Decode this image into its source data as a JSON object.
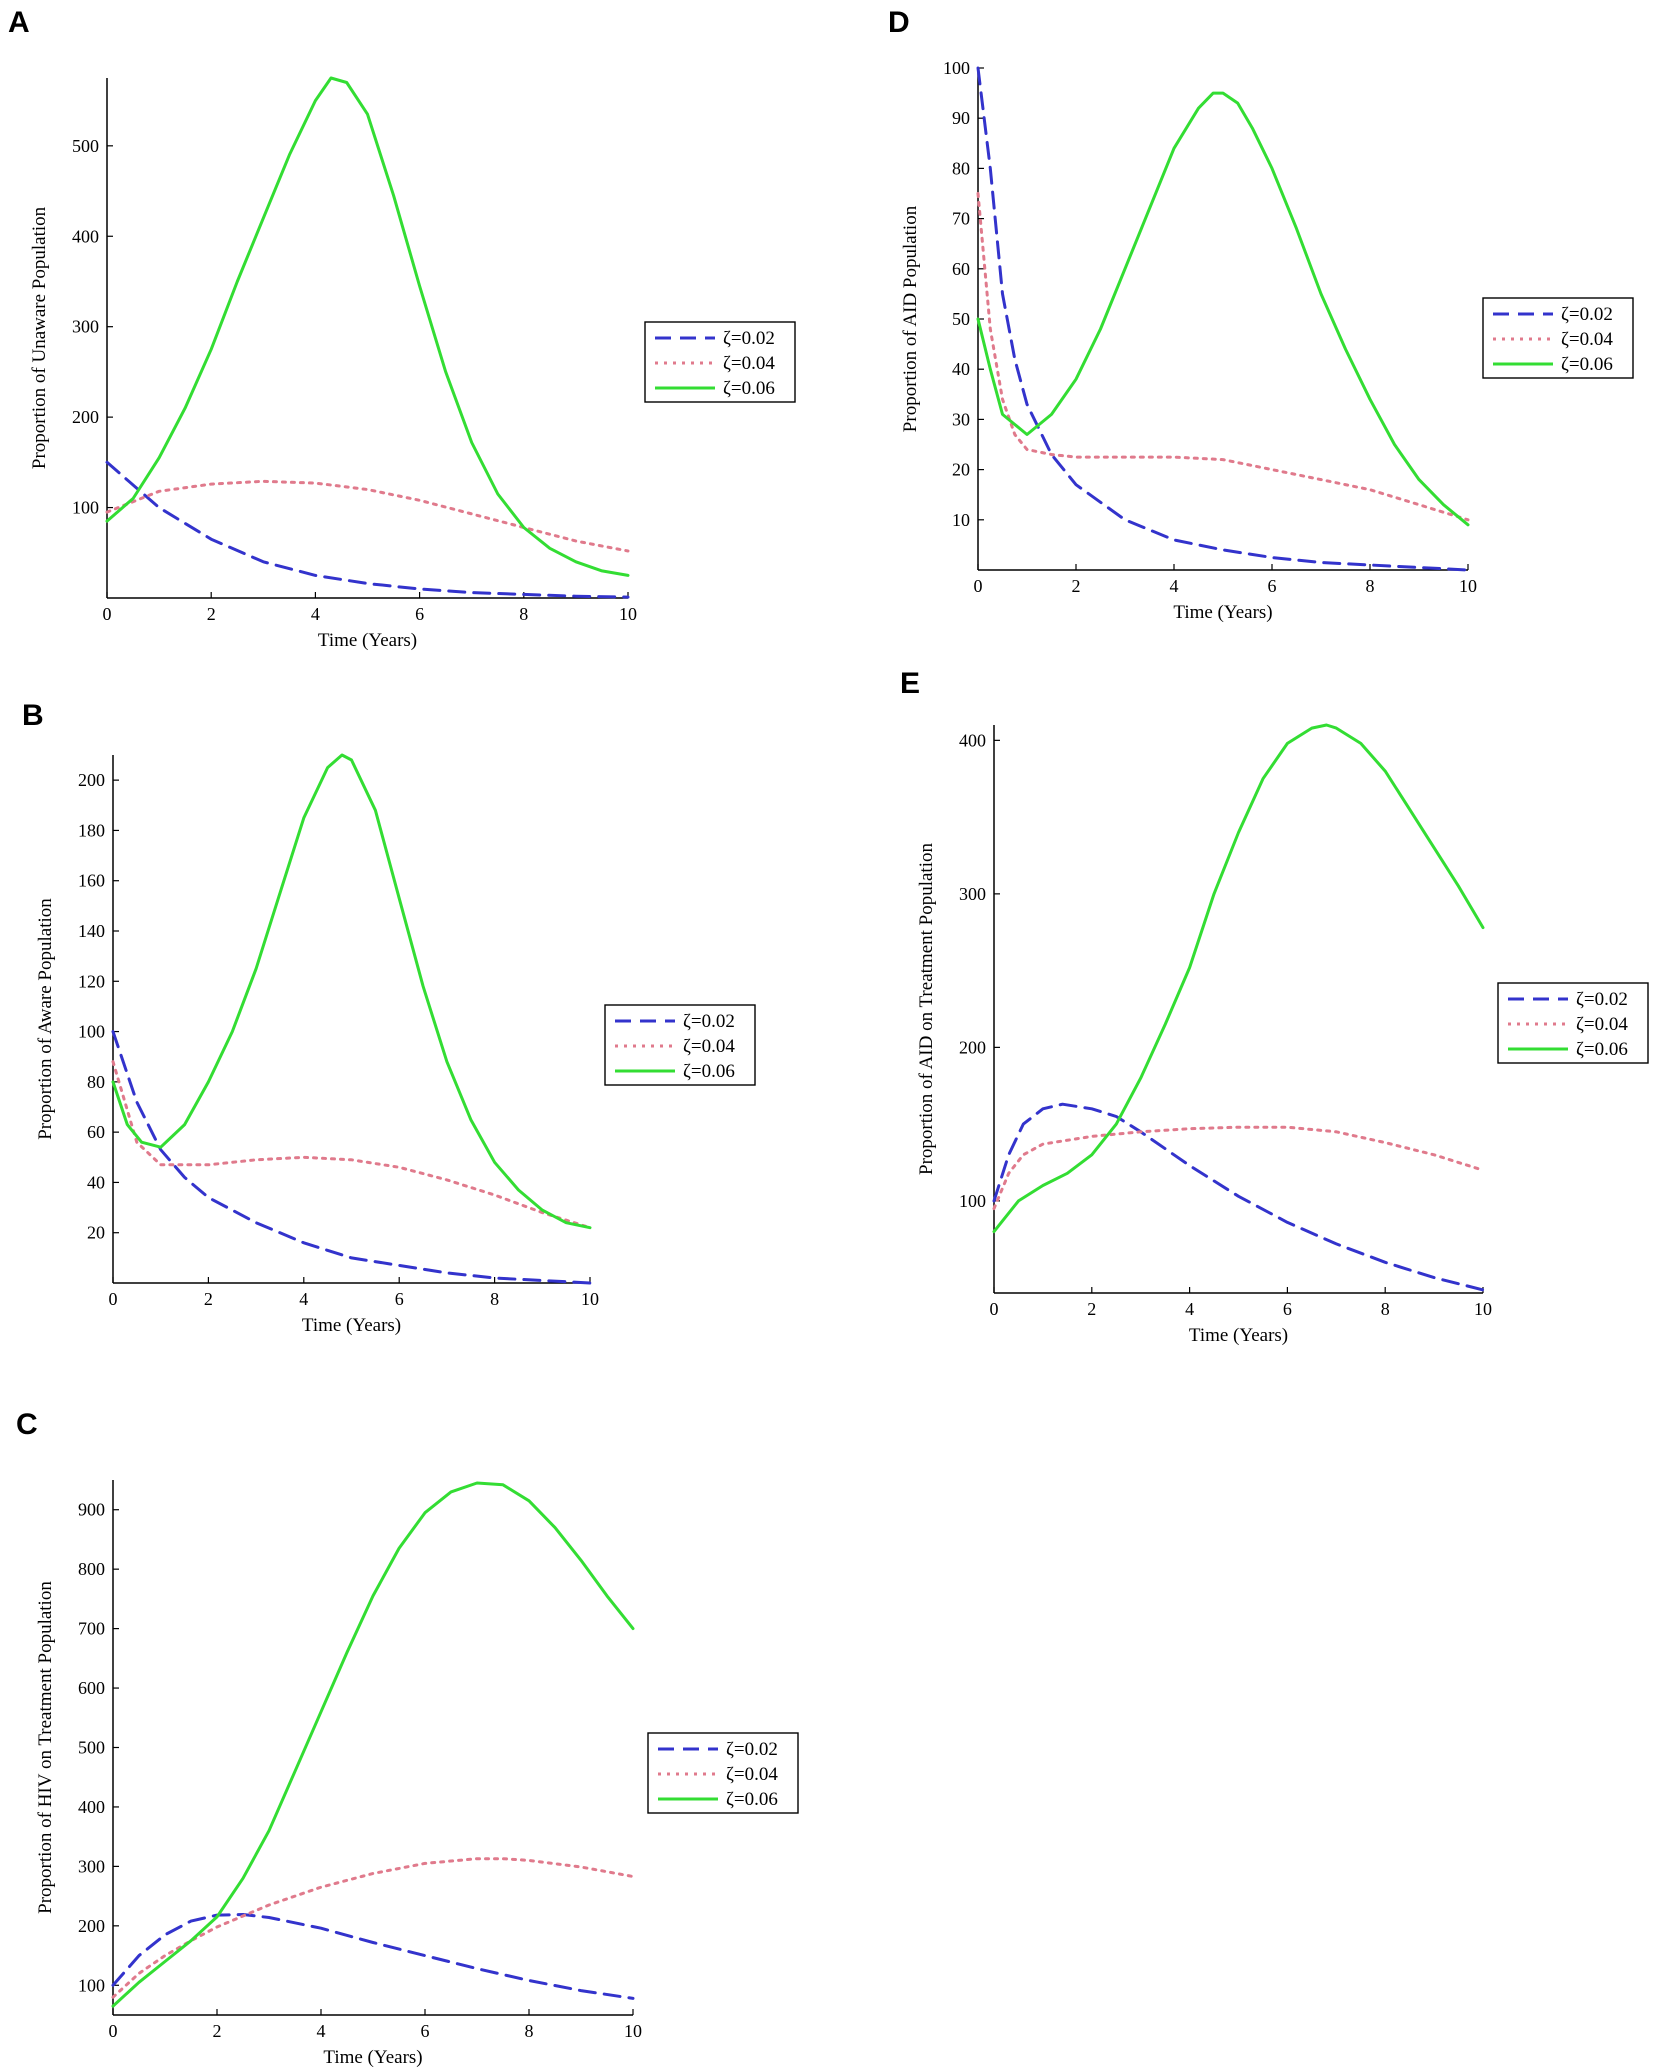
{
  "colors": {
    "series_1": "#3333cc",
    "series_2": "#e07a8c",
    "series_3": "#33dd33"
  },
  "chart_data": [
    {
      "panel": "A",
      "type": "line",
      "xlabel": "Time (Years)",
      "ylabel": "Proportion of Unaware Population",
      "xlim": [
        0,
        10
      ],
      "ylim": [
        0,
        575
      ],
      "xticks": [
        0,
        2,
        4,
        6,
        8,
        10
      ],
      "yticks": [
        100,
        200,
        300,
        400,
        500
      ],
      "legend": "right",
      "series": [
        {
          "name": "ζ=0.02",
          "style": "dashed",
          "x": [
            0,
            1,
            2,
            3,
            4,
            5,
            6,
            7,
            8,
            9,
            10
          ],
          "y": [
            150,
            100,
            65,
            40,
            25,
            16,
            10,
            6,
            4,
            2,
            1
          ]
        },
        {
          "name": "ζ=0.04",
          "style": "dotted",
          "x": [
            0,
            1,
            2,
            3,
            4,
            5,
            6,
            7,
            8,
            9,
            10
          ],
          "y": [
            95,
            118,
            126,
            129,
            127,
            120,
            108,
            93,
            78,
            63,
            52
          ]
        },
        {
          "name": "ζ=0.06",
          "style": "solid",
          "x": [
            0,
            0.5,
            1,
            1.5,
            2,
            2.5,
            3,
            3.5,
            4,
            4.3,
            4.6,
            5,
            5.5,
            6,
            6.5,
            7,
            7.5,
            8,
            8.5,
            9,
            9.5,
            10
          ],
          "y": [
            85,
            110,
            155,
            210,
            275,
            350,
            420,
            490,
            550,
            575,
            570,
            535,
            445,
            345,
            250,
            172,
            115,
            78,
            55,
            40,
            30,
            25
          ]
        }
      ]
    },
    {
      "panel": "B",
      "type": "line",
      "xlabel": "Time (Years)",
      "ylabel": "Proportion of Aware Population",
      "xlim": [
        0,
        10
      ],
      "ylim": [
        0,
        210
      ],
      "xticks": [
        0,
        2,
        4,
        6,
        8,
        10
      ],
      "yticks": [
        20,
        40,
        60,
        80,
        100,
        120,
        140,
        160,
        180,
        200
      ],
      "legend": "right",
      "series": [
        {
          "name": "ζ=0.02",
          "style": "dashed",
          "x": [
            0,
            0.5,
            1,
            1.5,
            2,
            3,
            4,
            5,
            6,
            7,
            8,
            9,
            10
          ],
          "y": [
            100,
            72,
            53,
            42,
            34,
            24,
            16,
            10,
            7,
            4,
            2,
            1,
            0
          ]
        },
        {
          "name": "ζ=0.04",
          "style": "dotted",
          "x": [
            0,
            0.5,
            1,
            2,
            3,
            4,
            5,
            6,
            7,
            8,
            9,
            10
          ],
          "y": [
            88,
            56,
            47,
            47,
            49,
            50,
            49,
            46,
            41,
            35,
            28,
            22
          ]
        },
        {
          "name": "ζ=0.06",
          "style": "solid",
          "x": [
            0,
            0.3,
            0.6,
            1,
            1.5,
            2,
            2.5,
            3,
            3.5,
            4,
            4.5,
            4.8,
            5,
            5.5,
            6,
            6.5,
            7,
            7.5,
            8,
            8.5,
            9,
            9.5,
            10
          ],
          "y": [
            80,
            63,
            56,
            54,
            63,
            80,
            100,
            125,
            155,
            185,
            205,
            210,
            208,
            188,
            153,
            118,
            88,
            65,
            48,
            37,
            29,
            24,
            22
          ]
        }
      ]
    },
    {
      "panel": "C",
      "type": "line",
      "xlabel": "Time (Years)",
      "ylabel": "Proportion of HIV on Treatment Population",
      "xlim": [
        0,
        10
      ],
      "ylim": [
        50,
        950
      ],
      "xticks": [
        0,
        2,
        4,
        6,
        8,
        10
      ],
      "yticks": [
        100,
        200,
        300,
        400,
        500,
        600,
        700,
        800,
        900
      ],
      "legend": "right",
      "series": [
        {
          "name": "ζ=0.02",
          "style": "dashed",
          "x": [
            0,
            0.5,
            1,
            1.5,
            2,
            2.5,
            3,
            4,
            5,
            6,
            7,
            8,
            9,
            10
          ],
          "y": [
            100,
            150,
            185,
            208,
            218,
            219,
            214,
            196,
            172,
            150,
            128,
            108,
            91,
            78
          ]
        },
        {
          "name": "ζ=0.04",
          "style": "dotted",
          "x": [
            0,
            0.5,
            1,
            1.5,
            2,
            3,
            4,
            5,
            6,
            7,
            7.5,
            8,
            9,
            10
          ],
          "y": [
            80,
            120,
            150,
            175,
            198,
            235,
            265,
            288,
            305,
            313,
            313,
            310,
            299,
            283
          ]
        },
        {
          "name": "ζ=0.06",
          "style": "solid",
          "x": [
            0,
            0.5,
            1,
            1.5,
            2,
            2.5,
            3,
            3.5,
            4,
            4.5,
            5,
            5.5,
            6,
            6.5,
            7,
            7.5,
            8,
            8.5,
            9,
            9.5,
            10
          ],
          "y": [
            65,
            105,
            140,
            175,
            215,
            280,
            360,
            460,
            560,
            660,
            755,
            835,
            895,
            930,
            945,
            942,
            915,
            870,
            815,
            755,
            700
          ]
        }
      ]
    },
    {
      "panel": "D",
      "type": "line",
      "xlabel": "Time (Years)",
      "ylabel": "Proportion of AID Population",
      "xlim": [
        0,
        10
      ],
      "ylim": [
        0,
        100
      ],
      "xticks": [
        0,
        2,
        4,
        6,
        8,
        10
      ],
      "yticks": [
        10,
        20,
        30,
        40,
        50,
        60,
        70,
        80,
        90,
        100
      ],
      "legend": "right",
      "series": [
        {
          "name": "ζ=0.02",
          "style": "dashed",
          "x": [
            0,
            0.25,
            0.5,
            0.75,
            1,
            1.5,
            2,
            3,
            4,
            5,
            6,
            7,
            8,
            9,
            10
          ],
          "y": [
            100,
            80,
            55,
            42,
            33,
            23,
            17,
            10,
            6,
            4,
            2.5,
            1.5,
            1,
            0.5,
            0
          ]
        },
        {
          "name": "ζ=0.04",
          "style": "dotted",
          "x": [
            0,
            0.25,
            0.5,
            0.75,
            1,
            1.5,
            2,
            3,
            4,
            5,
            6,
            7,
            8,
            9,
            10
          ],
          "y": [
            75,
            48,
            34,
            27,
            24,
            23,
            22.5,
            22.5,
            22.5,
            22,
            20,
            18,
            16,
            13,
            10
          ]
        },
        {
          "name": "ζ=0.06",
          "style": "solid",
          "x": [
            0,
            0.25,
            0.5,
            1,
            1.5,
            2,
            2.5,
            3,
            3.5,
            4,
            4.5,
            4.8,
            5,
            5.3,
            5.6,
            6,
            6.5,
            7,
            7.5,
            8,
            8.5,
            9,
            9.5,
            10
          ],
          "y": [
            50,
            40,
            31,
            27,
            31,
            38,
            48,
            60,
            72,
            84,
            92,
            95,
            95,
            93,
            88,
            80,
            68,
            55,
            44,
            34,
            25,
            18,
            13,
            9
          ]
        }
      ]
    },
    {
      "panel": "E",
      "type": "line",
      "xlabel": "Time (Years)",
      "ylabel": "Proportion of AID on Treatment Population",
      "xlim": [
        0,
        10
      ],
      "ylim": [
        40,
        410
      ],
      "xticks": [
        0,
        2,
        4,
        6,
        8,
        10
      ],
      "yticks": [
        100,
        200,
        300,
        400
      ],
      "legend": "right",
      "series": [
        {
          "name": "ζ=0.02",
          "style": "dashed",
          "x": [
            0,
            0.3,
            0.6,
            1,
            1.4,
            2,
            2.5,
            3,
            4,
            5,
            6,
            7,
            8,
            9,
            10
          ],
          "y": [
            100,
            130,
            150,
            160,
            163,
            160,
            155,
            145,
            123,
            103,
            86,
            72,
            60,
            50,
            42
          ]
        },
        {
          "name": "ζ=0.04",
          "style": "dotted",
          "x": [
            0,
            0.3,
            0.6,
            1,
            2,
            3,
            4,
            5,
            6,
            7,
            8,
            9,
            10
          ],
          "y": [
            95,
            118,
            130,
            137,
            142,
            145,
            147,
            148,
            148,
            145,
            138,
            130,
            120
          ]
        },
        {
          "name": "ζ=0.06",
          "style": "solid",
          "x": [
            0,
            0.5,
            1,
            1.5,
            2,
            2.5,
            3,
            3.5,
            4,
            4.5,
            5,
            5.5,
            6,
            6.5,
            6.8,
            7,
            7.5,
            8,
            8.5,
            9,
            9.5,
            10
          ],
          "y": [
            80,
            100,
            110,
            118,
            130,
            150,
            180,
            215,
            252,
            300,
            340,
            375,
            398,
            408,
            410,
            408,
            398,
            380,
            355,
            330,
            305,
            278
          ]
        }
      ]
    }
  ]
}
